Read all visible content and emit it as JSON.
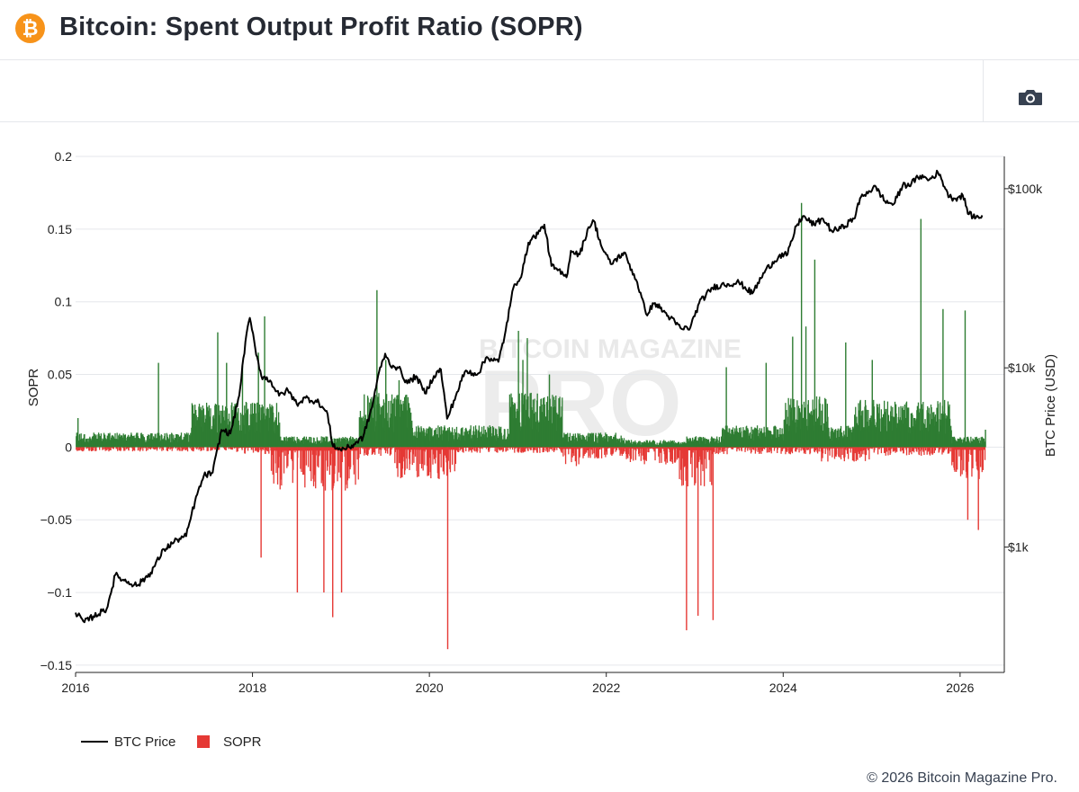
{
  "header": {
    "title": "Bitcoin: Spent Output Profit Ratio (SOPR)",
    "logo_symbol": "₿",
    "logo_color": "#f7931a"
  },
  "toolbar": {
    "camera_icon": "camera-icon"
  },
  "watermark": {
    "line1": "BITCOIN MAGAZINE",
    "line2": "PRO"
  },
  "footer": {
    "copyright": "© 2026 Bitcoin Magazine Pro."
  },
  "chart_data": {
    "type": "bar+line",
    "title": "Bitcoin: Spent Output Profit Ratio (SOPR)",
    "xlabel": "",
    "ylabel": "SOPR",
    "y2label": "BTC Price (USD)",
    "xlim": [
      2016.0,
      2026.5
    ],
    "ylim": [
      -0.155,
      0.2
    ],
    "y2lim_log10": [
      2.3,
      5.18
    ],
    "x_ticks": [
      "2016",
      "2018",
      "2020",
      "2022",
      "2024",
      "2026"
    ],
    "x_tick_values": [
      2016,
      2018,
      2020,
      2022,
      2024,
      2026
    ],
    "y_ticks": [
      "0.2",
      "0.15",
      "0.1",
      "0.05",
      "0",
      "−0.05",
      "−0.1",
      "−0.15"
    ],
    "y_tick_values": [
      0.2,
      0.15,
      0.1,
      0.05,
      0,
      -0.05,
      -0.1,
      -0.15
    ],
    "y2_ticks": [
      "$100k",
      "$10k",
      "$1k"
    ],
    "y2_tick_values": [
      100000,
      10000,
      1000
    ],
    "colors": {
      "price": "#000000",
      "positive": "#2e7d32",
      "negative": "#e53935",
      "grid": "#e5e7eb"
    },
    "legend": [
      {
        "name": "BTC Price",
        "symbol": "line",
        "color": "#000000"
      },
      {
        "name": "SOPR",
        "symbol": "square",
        "color": "#e53935"
      }
    ],
    "series": [
      {
        "name": "BTC Price",
        "type": "line",
        "axis": "y2",
        "points": [
          [
            2016.0,
            430
          ],
          [
            2016.1,
            380
          ],
          [
            2016.2,
            410
          ],
          [
            2016.35,
            450
          ],
          [
            2016.45,
            700
          ],
          [
            2016.55,
            650
          ],
          [
            2016.7,
            610
          ],
          [
            2016.85,
            720
          ],
          [
            2017.0,
            970
          ],
          [
            2017.15,
            1100
          ],
          [
            2017.25,
            1150
          ],
          [
            2017.35,
            1800
          ],
          [
            2017.45,
            2500
          ],
          [
            2017.55,
            2600
          ],
          [
            2017.65,
            4500
          ],
          [
            2017.75,
            4300
          ],
          [
            2017.85,
            7000
          ],
          [
            2017.92,
            14000
          ],
          [
            2017.97,
            19000
          ],
          [
            2018.03,
            13000
          ],
          [
            2018.1,
            9000
          ],
          [
            2018.2,
            8500
          ],
          [
            2018.3,
            7000
          ],
          [
            2018.4,
            7500
          ],
          [
            2018.5,
            6300
          ],
          [
            2018.6,
            6800
          ],
          [
            2018.75,
            6400
          ],
          [
            2018.85,
            5500
          ],
          [
            2018.9,
            3800
          ],
          [
            2018.97,
            3500
          ],
          [
            2019.1,
            3600
          ],
          [
            2019.25,
            4100
          ],
          [
            2019.35,
            6000
          ],
          [
            2019.42,
            9000
          ],
          [
            2019.5,
            12000
          ],
          [
            2019.55,
            10500
          ],
          [
            2019.65,
            10000
          ],
          [
            2019.75,
            8200
          ],
          [
            2019.85,
            9000
          ],
          [
            2019.95,
            7200
          ],
          [
            2020.05,
            9000
          ],
          [
            2020.13,
            9800
          ],
          [
            2020.2,
            5200
          ],
          [
            2020.3,
            7000
          ],
          [
            2020.4,
            9500
          ],
          [
            2020.55,
            9300
          ],
          [
            2020.65,
            11500
          ],
          [
            2020.78,
            10800
          ],
          [
            2020.85,
            15000
          ],
          [
            2020.95,
            28000
          ],
          [
            2021.05,
            34000
          ],
          [
            2021.12,
            50000
          ],
          [
            2021.25,
            58000
          ],
          [
            2021.3,
            63000
          ],
          [
            2021.38,
            37000
          ],
          [
            2021.45,
            35000
          ],
          [
            2021.55,
            32000
          ],
          [
            2021.6,
            45000
          ],
          [
            2021.7,
            43000
          ],
          [
            2021.8,
            61000
          ],
          [
            2021.86,
            66000
          ],
          [
            2021.95,
            47000
          ],
          [
            2022.05,
            38000
          ],
          [
            2022.2,
            44000
          ],
          [
            2022.35,
            30000
          ],
          [
            2022.45,
            20000
          ],
          [
            2022.55,
            23000
          ],
          [
            2022.7,
            19500
          ],
          [
            2022.85,
            16500
          ],
          [
            2022.95,
            16800
          ],
          [
            2023.05,
            23000
          ],
          [
            2023.2,
            28000
          ],
          [
            2023.3,
            29000
          ],
          [
            2023.5,
            30000
          ],
          [
            2023.65,
            26000
          ],
          [
            2023.8,
            35000
          ],
          [
            2023.95,
            42000
          ],
          [
            2024.05,
            43000
          ],
          [
            2024.15,
            62000
          ],
          [
            2024.22,
            70000
          ],
          [
            2024.35,
            63000
          ],
          [
            2024.45,
            68000
          ],
          [
            2024.55,
            58000
          ],
          [
            2024.65,
            60000
          ],
          [
            2024.8,
            68000
          ],
          [
            2024.88,
            90000
          ],
          [
            2024.97,
            97000
          ],
          [
            2025.05,
            102000
          ],
          [
            2025.15,
            85000
          ],
          [
            2025.25,
            82000
          ],
          [
            2025.35,
            104000
          ],
          [
            2025.45,
            107000
          ],
          [
            2025.55,
            118000
          ],
          [
            2025.65,
            112000
          ],
          [
            2025.75,
            123000
          ],
          [
            2025.8,
            110000
          ],
          [
            2025.88,
            90000
          ],
          [
            2025.95,
            88000
          ],
          [
            2026.03,
            92000
          ],
          [
            2026.1,
            72000
          ],
          [
            2026.18,
            69000
          ],
          [
            2026.25,
            71000
          ]
        ]
      },
      {
        "name": "SOPR",
        "type": "bar",
        "axis": "y",
        "notable_spikes": [
          [
            2016.02,
            0.02
          ],
          [
            2016.93,
            0.058
          ],
          [
            2017.6,
            0.079
          ],
          [
            2017.7,
            0.058
          ],
          [
            2017.88,
            0.056
          ],
          [
            2018.06,
            0.065
          ],
          [
            2018.09,
            -0.076
          ],
          [
            2018.13,
            0.09
          ],
          [
            2018.5,
            -0.1
          ],
          [
            2018.8,
            -0.1
          ],
          [
            2018.9,
            -0.117
          ],
          [
            2019.0,
            -0.1
          ],
          [
            2019.4,
            0.108
          ],
          [
            2019.5,
            0.06
          ],
          [
            2019.65,
            0.046
          ],
          [
            2020.2,
            -0.139
          ],
          [
            2021.0,
            0.08
          ],
          [
            2021.05,
            0.06
          ],
          [
            2021.1,
            0.075
          ],
          [
            2021.35,
            0.05
          ],
          [
            2022.9,
            -0.126
          ],
          [
            2023.03,
            -0.116
          ],
          [
            2023.2,
            -0.119
          ],
          [
            2023.35,
            0.055
          ],
          [
            2023.8,
            0.058
          ],
          [
            2024.1,
            0.076
          ],
          [
            2024.2,
            0.168
          ],
          [
            2024.25,
            0.083
          ],
          [
            2024.35,
            0.129
          ],
          [
            2024.7,
            0.072
          ],
          [
            2025.0,
            0.06
          ],
          [
            2025.55,
            0.157
          ],
          [
            2025.8,
            0.095
          ],
          [
            2026.05,
            0.094
          ],
          [
            2026.08,
            -0.05
          ],
          [
            2026.2,
            -0.057
          ],
          [
            2026.28,
            0.012
          ]
        ]
      }
    ]
  }
}
